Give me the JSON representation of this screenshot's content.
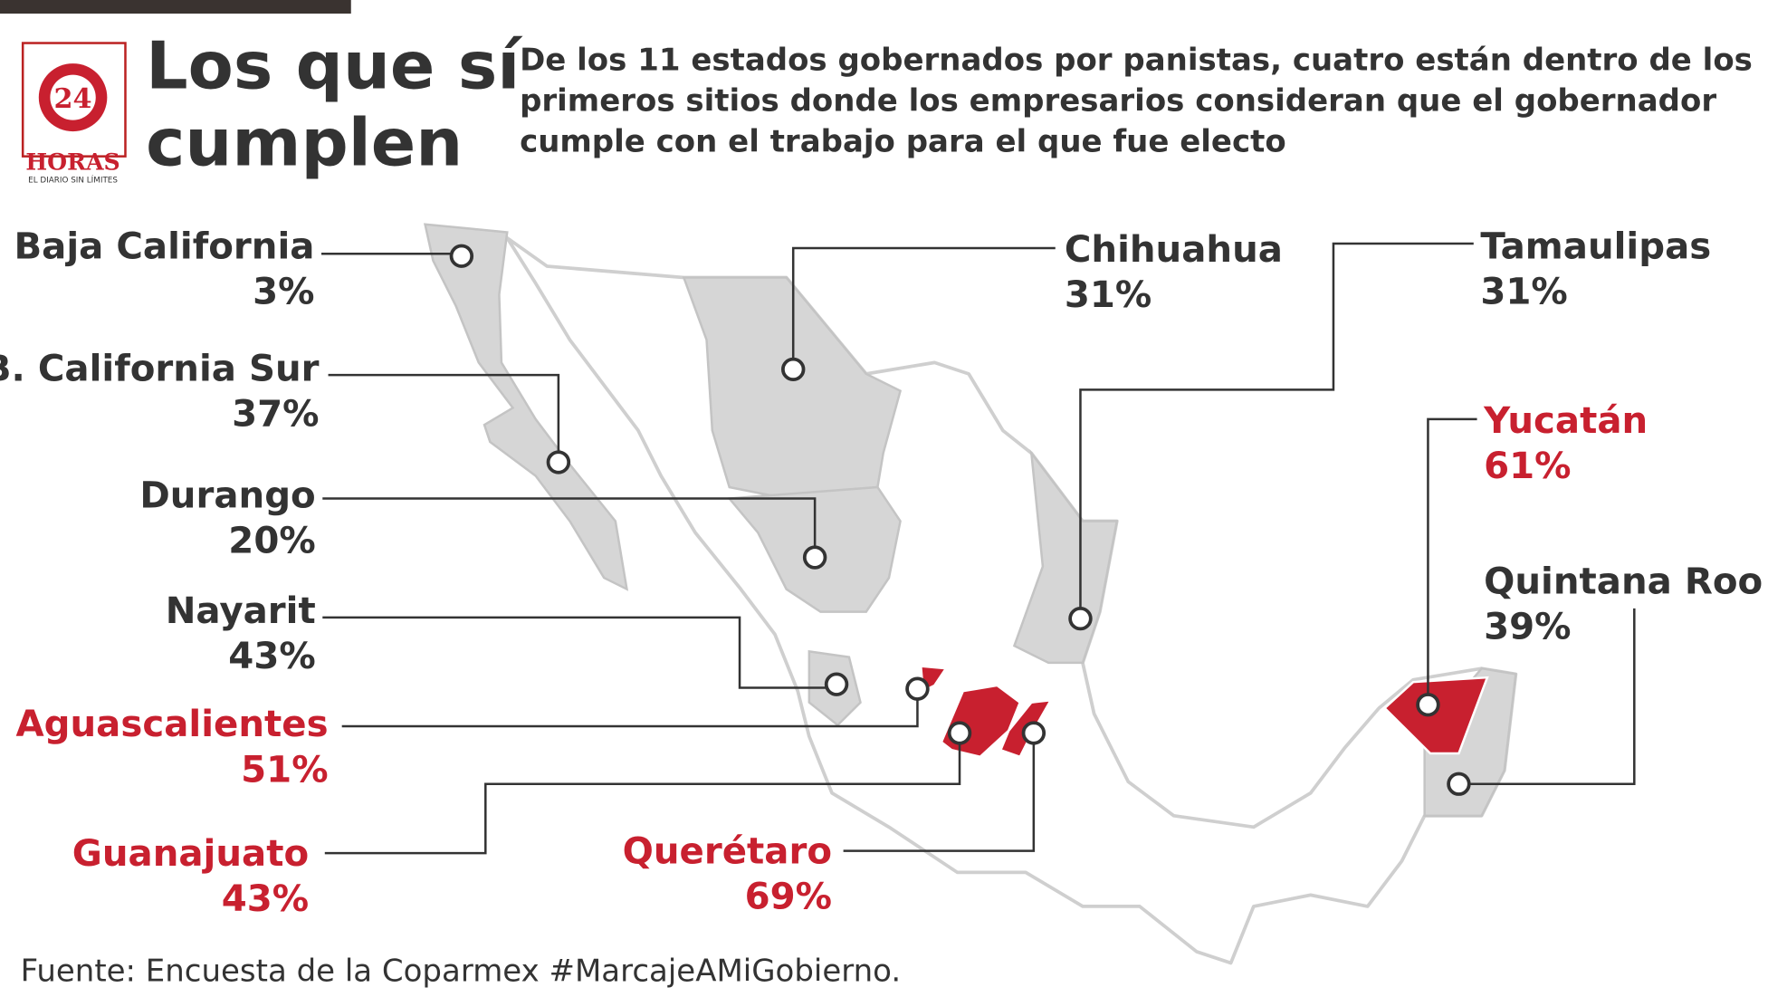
{
  "header": {
    "logo": {
      "number": "24",
      "name": "HORAS",
      "tagline": "EL DIARIO SIN LÍMITES"
    },
    "title": [
      "Los que sí",
      "cumplen"
    ],
    "description": [
      "De los 11 estados gobernados por panistas, cuatro están dentro de los",
      "primeros sitios donde los empresarios consideran que el gobernador",
      "cumple con el trabajo para el que fue electo"
    ]
  },
  "states": [
    {
      "name": "Baja California",
      "value": "3%",
      "highlighted": false
    },
    {
      "name": "B. California Sur",
      "value": "37%",
      "highlighted": false
    },
    {
      "name": "Durango",
      "value": "20%",
      "highlighted": false
    },
    {
      "name": "Nayarit",
      "value": "43%",
      "highlighted": false
    },
    {
      "name": "Aguascalientes",
      "value": "51%",
      "highlighted": true
    },
    {
      "name": "Guanajuato",
      "value": "43%",
      "highlighted": true
    },
    {
      "name": "Querétaro",
      "value": "69%",
      "highlighted": true
    },
    {
      "name": "Chihuahua",
      "value": "31%",
      "highlighted": false
    },
    {
      "name": "Tamaulipas",
      "value": "31%",
      "highlighted": false
    },
    {
      "name": "Yucatán",
      "value": "61%",
      "highlighted": true
    },
    {
      "name": "Quintana Roo",
      "value": "39%",
      "highlighted": false
    }
  ],
  "source": "Fuente: Encuesta de la Coparmex #MarcajeAMiGobierno.",
  "colors": {
    "highlight": "#c8202f",
    "normal": "#333333"
  }
}
